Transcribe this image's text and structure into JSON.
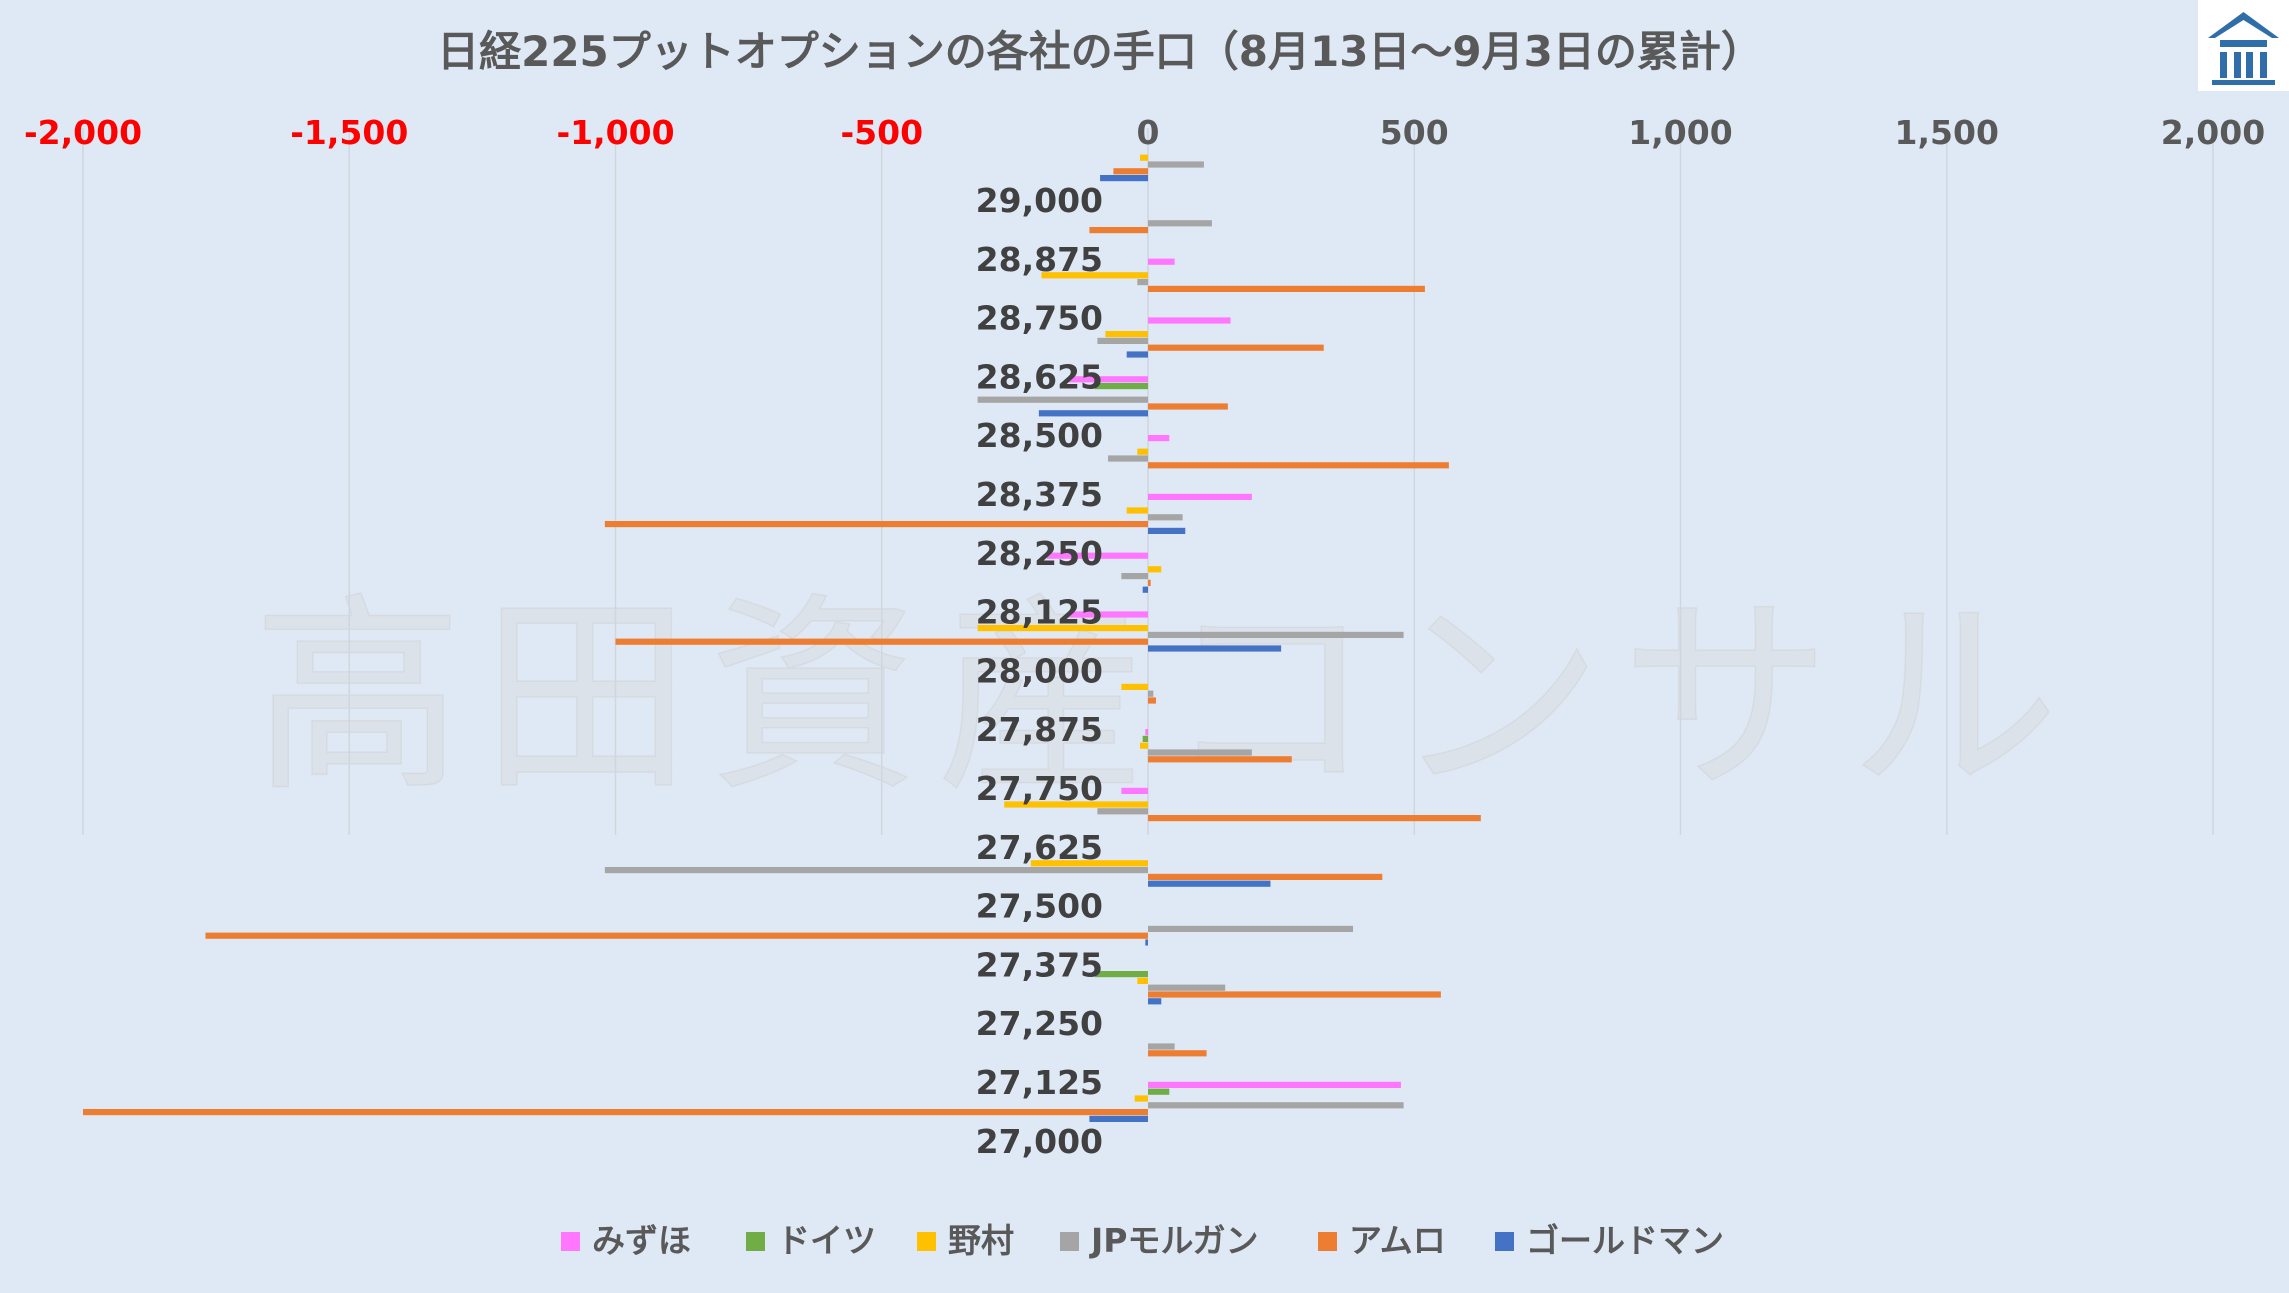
{
  "chart_data": {
    "type": "bar",
    "orientation": "horizontal",
    "title": "日経225プットオプションの各社の手口（8月13日～9月3日の累計）",
    "watermark": "高田資産コンサル",
    "logo": "shrine-roof-logo-icon",
    "x_ticks": [
      "-2,000",
      "-1,500",
      "-1,000",
      "-500",
      "0",
      "500",
      "1,000",
      "1,500",
      "2,000"
    ],
    "xlim": [
      -2000,
      2000
    ],
    "negative_tick_color": "#ff0000",
    "positive_tick_color": "#595959",
    "grid": true,
    "legend_position": "bottom",
    "categories": [
      "29,000",
      "28,875",
      "28,750",
      "28,625",
      "28,500",
      "28,375",
      "28,250",
      "28,125",
      "28,000",
      "27,875",
      "27,750",
      "27,625",
      "27,500",
      "27,375",
      "27,250",
      "27,125",
      "27,000"
    ],
    "series": [
      {
        "name": "みずほ",
        "color": "#ff77ff",
        "values": [
          0,
          0,
          50,
          155,
          -150,
          40,
          195,
          -190,
          -150,
          0,
          -5,
          -50,
          0,
          0,
          0,
          0,
          475
        ]
      },
      {
        "name": "ドイツ",
        "color": "#70ad47",
        "values": [
          0,
          0,
          0,
          0,
          -100,
          0,
          0,
          0,
          0,
          0,
          -10,
          0,
          0,
          0,
          -100,
          0,
          40
        ]
      },
      {
        "name": "野村",
        "color": "#ffc000",
        "values": [
          -15,
          0,
          -200,
          -80,
          0,
          -20,
          -40,
          25,
          -320,
          -50,
          -15,
          -270,
          -220,
          0,
          -20,
          0,
          -25
        ]
      },
      {
        "name": "JPモルガン",
        "color": "#a5a5a5",
        "values": [
          105,
          120,
          -20,
          -95,
          -320,
          -75,
          65,
          -50,
          480,
          10,
          195,
          -95,
          -1020,
          385,
          145,
          50,
          480
        ]
      },
      {
        "name": "アムロ",
        "color": "#ed7d31",
        "values": [
          -65,
          -110,
          520,
          330,
          150,
          565,
          -1020,
          5,
          -1000,
          15,
          270,
          625,
          440,
          -1770,
          550,
          110,
          -2000
        ]
      },
      {
        "name": "ゴールドマン",
        "color": "#4472c4",
        "values": [
          -90,
          0,
          0,
          -40,
          -205,
          0,
          70,
          -10,
          250,
          0,
          0,
          0,
          230,
          -5,
          25,
          0,
          -110
        ]
      }
    ]
  }
}
